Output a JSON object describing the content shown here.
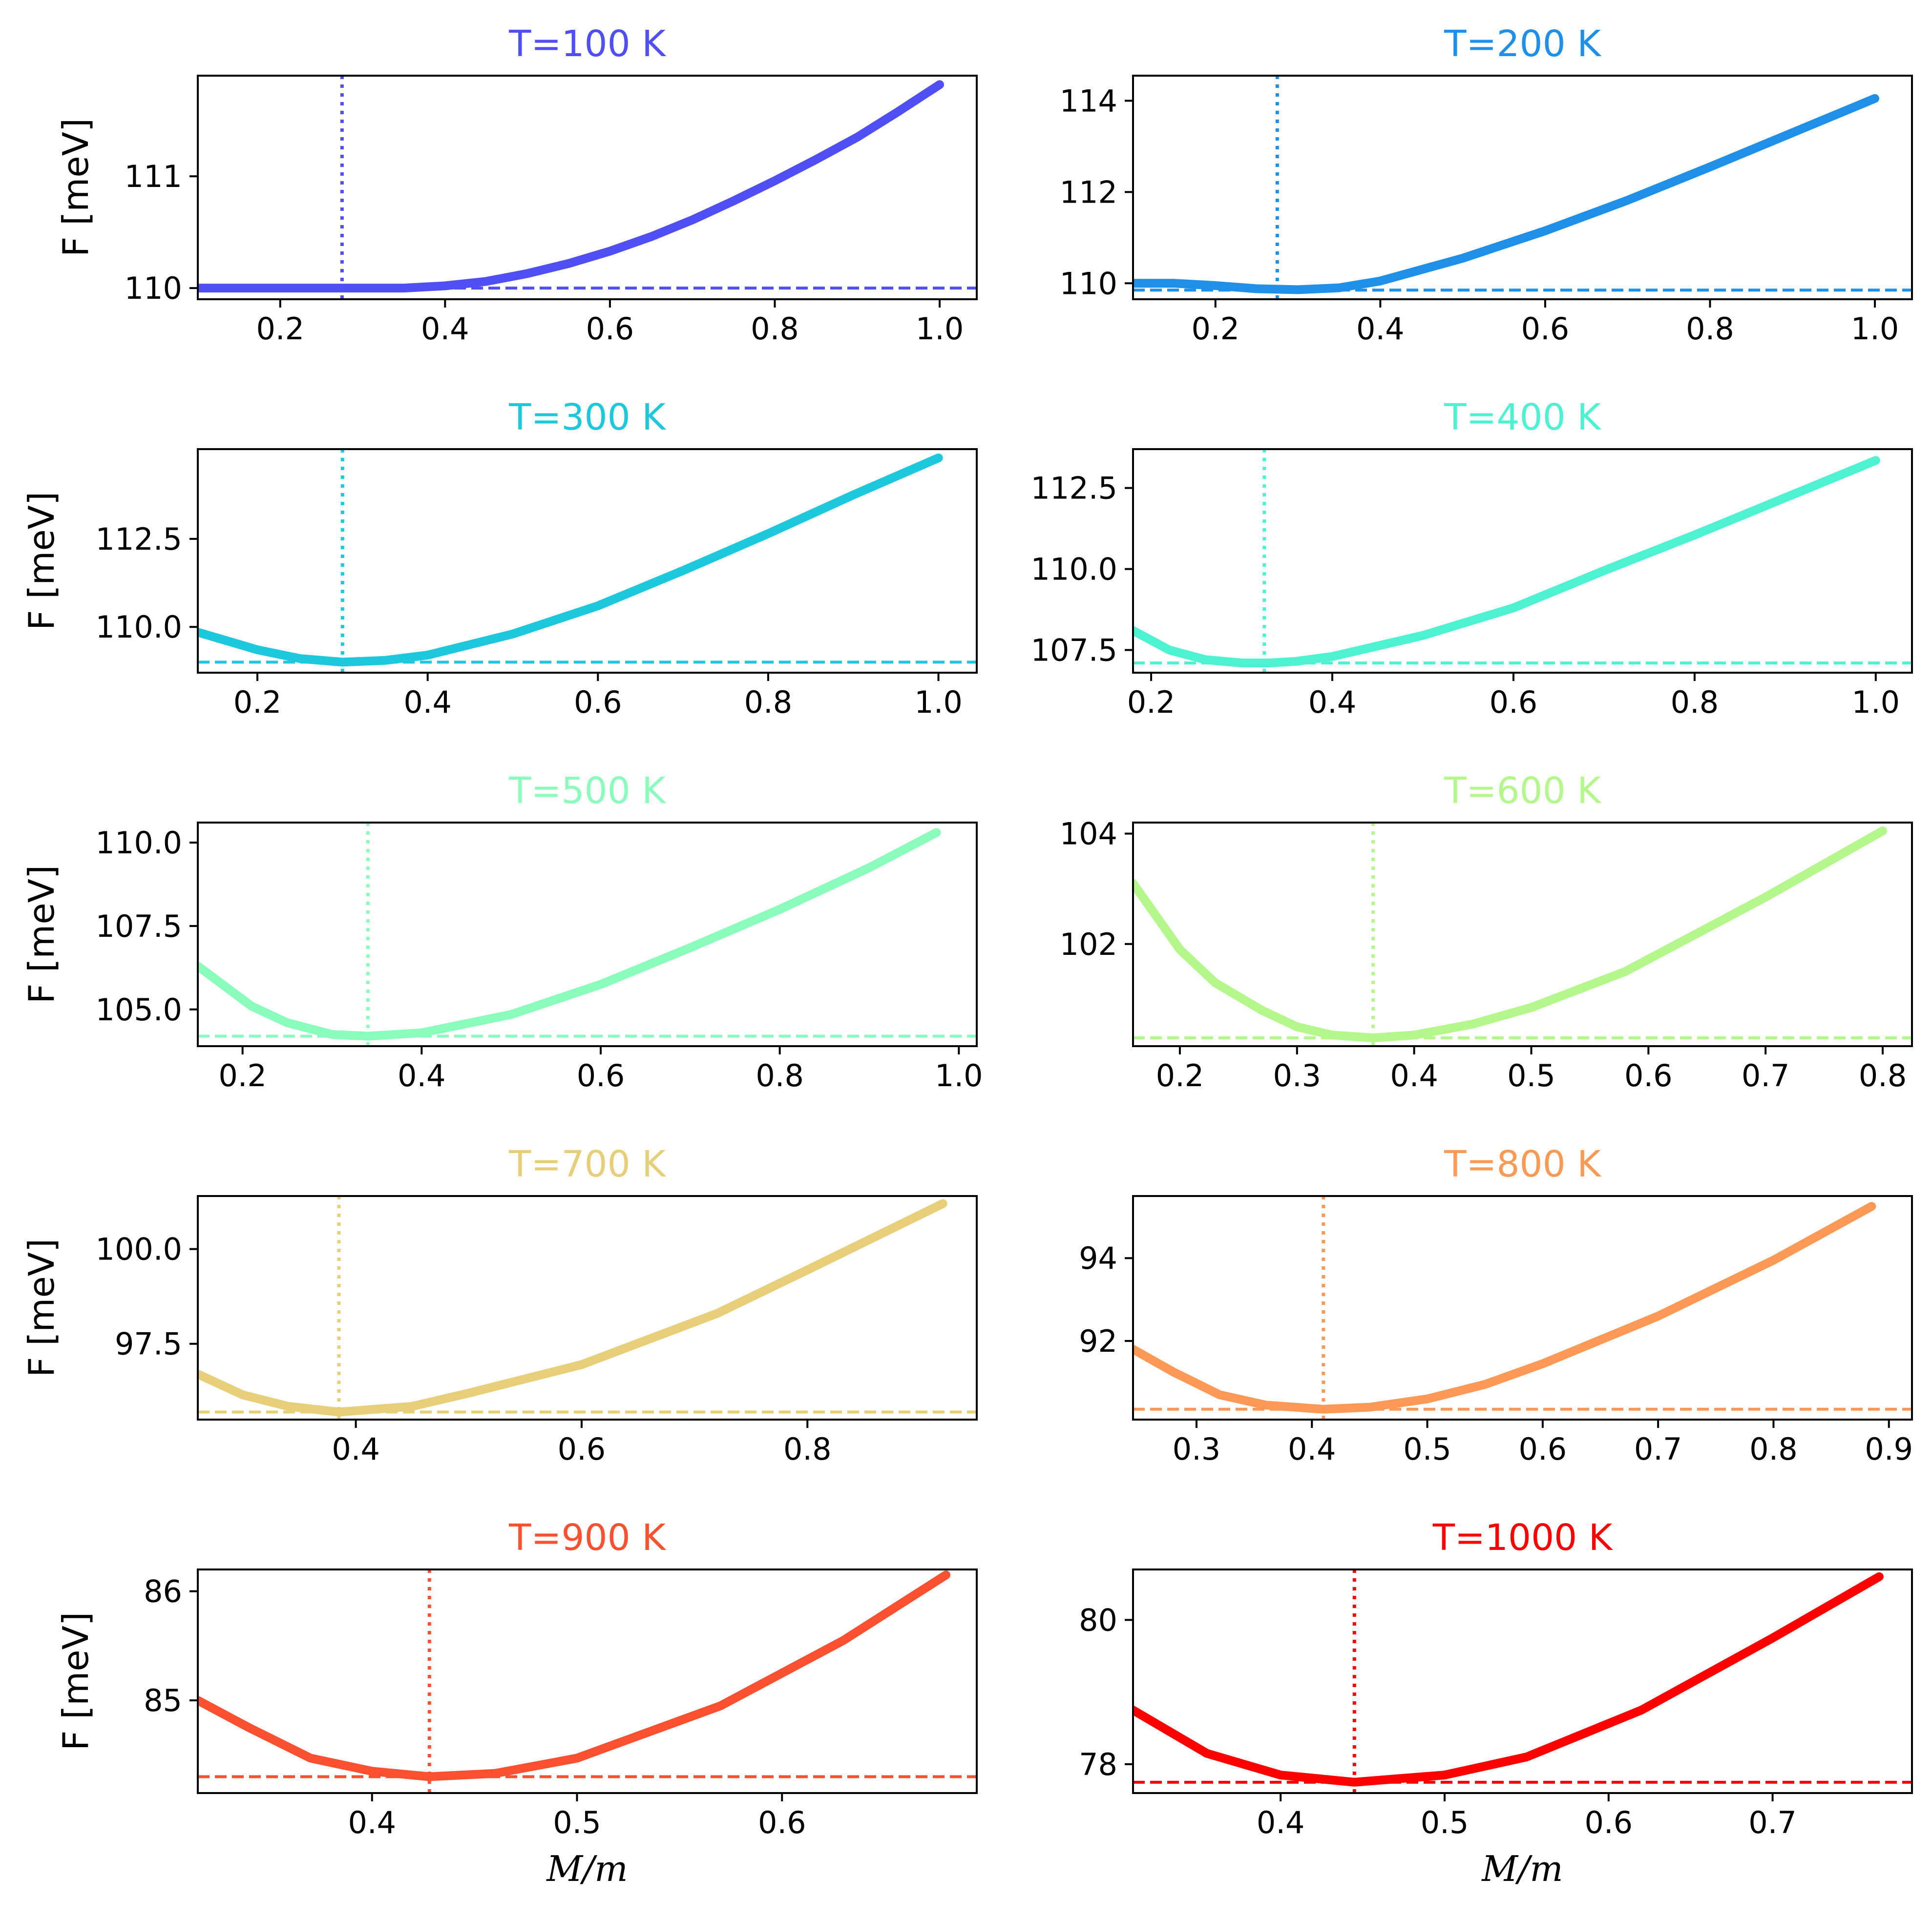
{
  "figure": {
    "ylabel": "F [meV]",
    "xlabel_main": "M",
    "xlabel_rest": "/m"
  },
  "chart_data": [
    {
      "type": "line",
      "title": "T=100 K",
      "color": "#4f4ff5",
      "xlim": [
        0.1,
        1.045
      ],
      "ylim": [
        109.9,
        111.9
      ],
      "xticks": [
        0.2,
        0.4,
        0.6,
        0.8,
        1.0
      ],
      "xtick_labels": [
        "0.2",
        "0.4",
        "0.6",
        "0.8",
        "1.0"
      ],
      "yticks": [
        110,
        111
      ],
      "ytick_labels": [
        "110",
        "111"
      ],
      "ylabel": "F [meV]",
      "xlabel": "",
      "vline_x": 0.275,
      "hline_y": 110.0,
      "x": [
        0.1,
        0.2,
        0.3,
        0.35,
        0.4,
        0.45,
        0.5,
        0.55,
        0.6,
        0.65,
        0.7,
        0.75,
        0.8,
        0.85,
        0.9,
        0.95,
        1.0
      ],
      "y": [
        110.0,
        110.0,
        110.0,
        110.0,
        110.02,
        110.06,
        110.13,
        110.22,
        110.33,
        110.46,
        110.61,
        110.78,
        110.96,
        111.15,
        111.35,
        111.58,
        111.82
      ]
    },
    {
      "type": "line",
      "title": "T=200 K",
      "color": "#1e90ea",
      "xlim": [
        0.1,
        1.045
      ],
      "ylim": [
        109.65,
        114.55
      ],
      "xticks": [
        0.2,
        0.4,
        0.6,
        0.8,
        1.0
      ],
      "xtick_labels": [
        "0.2",
        "0.4",
        "0.6",
        "0.8",
        "1.0"
      ],
      "yticks": [
        110,
        112,
        114
      ],
      "ytick_labels": [
        "110",
        "112",
        "114"
      ],
      "ylabel": "",
      "xlabel": "",
      "vline_x": 0.275,
      "hline_y": 109.85,
      "x": [
        0.1,
        0.15,
        0.2,
        0.25,
        0.3,
        0.35,
        0.4,
        0.5,
        0.6,
        0.7,
        0.8,
        0.9,
        1.0
      ],
      "y": [
        110.0,
        110.0,
        109.95,
        109.88,
        109.86,
        109.9,
        110.05,
        110.55,
        111.15,
        111.82,
        112.55,
        113.3,
        114.05
      ]
    },
    {
      "type": "line",
      "title": "T=300 K",
      "color": "#1ec8dc",
      "xlim": [
        0.13,
        1.045
      ],
      "ylim": [
        108.7,
        115.05
      ],
      "xticks": [
        0.2,
        0.4,
        0.6,
        0.8,
        1.0
      ],
      "xtick_labels": [
        "0.2",
        "0.4",
        "0.6",
        "0.8",
        "1.0"
      ],
      "yticks": [
        110.0,
        112.5
      ],
      "ytick_labels": [
        "110.0",
        "112.5"
      ],
      "ylabel": "F [meV]",
      "xlabel": "",
      "vline_x": 0.3,
      "hline_y": 109.0,
      "x": [
        0.13,
        0.2,
        0.25,
        0.3,
        0.35,
        0.4,
        0.5,
        0.6,
        0.7,
        0.8,
        0.9,
        1.0
      ],
      "y": [
        109.85,
        109.35,
        109.1,
        109.0,
        109.05,
        109.2,
        109.8,
        110.6,
        111.6,
        112.65,
        113.75,
        114.8
      ]
    },
    {
      "type": "line",
      "title": "T=400 K",
      "color": "#4cf2d2",
      "xlim": [
        0.18,
        1.04
      ],
      "ylim": [
        106.8,
        113.7
      ],
      "xticks": [
        0.2,
        0.4,
        0.6,
        0.8,
        1.0
      ],
      "xtick_labels": [
        "0.2",
        "0.4",
        "0.6",
        "0.8",
        "1.0"
      ],
      "yticks": [
        107.5,
        110.0,
        112.5
      ],
      "ytick_labels": [
        "107.5",
        "110.0",
        "112.5"
      ],
      "ylabel": "",
      "xlabel": "",
      "vline_x": 0.325,
      "hline_y": 107.1,
      "x": [
        0.18,
        0.22,
        0.26,
        0.3,
        0.33,
        0.36,
        0.4,
        0.5,
        0.6,
        0.7,
        0.8,
        0.9,
        1.0
      ],
      "y": [
        108.1,
        107.5,
        107.2,
        107.1,
        107.1,
        107.15,
        107.3,
        107.95,
        108.8,
        109.95,
        111.05,
        112.2,
        113.35
      ]
    },
    {
      "type": "line",
      "title": "T=500 K",
      "color": "#8afcbc",
      "xlim": [
        0.15,
        1.02
      ],
      "ylim": [
        103.9,
        110.6
      ],
      "xticks": [
        0.2,
        0.4,
        0.6,
        0.8,
        1.0
      ],
      "xtick_labels": [
        "0.2",
        "0.4",
        "0.6",
        "0.8",
        "1.0"
      ],
      "yticks": [
        105.0,
        107.5,
        110.0
      ],
      "ytick_labels": [
        "105.0",
        "107.5",
        "110.0"
      ],
      "ylabel": "F [meV]",
      "xlabel": "",
      "vline_x": 0.34,
      "hline_y": 104.2,
      "x": [
        0.15,
        0.21,
        0.25,
        0.3,
        0.34,
        0.4,
        0.5,
        0.6,
        0.7,
        0.8,
        0.9,
        0.975
      ],
      "y": [
        106.3,
        105.1,
        104.6,
        104.25,
        104.2,
        104.3,
        104.85,
        105.75,
        106.85,
        108.0,
        109.25,
        110.3
      ]
    },
    {
      "type": "line",
      "title": "T=600 K",
      "color": "#b4f88c",
      "xlim": [
        0.16,
        0.825
      ],
      "ylim": [
        100.15,
        104.2
      ],
      "xticks": [
        0.2,
        0.3,
        0.4,
        0.5,
        0.6,
        0.7,
        0.8
      ],
      "xtick_labels": [
        "0.2",
        "0.3",
        "0.4",
        "0.5",
        "0.6",
        "0.7",
        "0.8"
      ],
      "yticks": [
        102,
        104
      ],
      "ytick_labels": [
        "102",
        "104"
      ],
      "ylabel": "",
      "xlabel": "",
      "vline_x": 0.365,
      "hline_y": 100.3,
      "x": [
        0.16,
        0.18,
        0.2,
        0.23,
        0.27,
        0.3,
        0.33,
        0.365,
        0.4,
        0.45,
        0.5,
        0.58,
        0.7,
        0.8
      ],
      "y": [
        103.1,
        102.5,
        101.9,
        101.3,
        100.8,
        100.5,
        100.35,
        100.3,
        100.35,
        100.55,
        100.85,
        101.5,
        102.85,
        104.05
      ]
    },
    {
      "type": "line",
      "title": "T=700 K",
      "color": "#e6cf78",
      "xlim": [
        0.26,
        0.95
      ],
      "ylim": [
        95.5,
        101.4
      ],
      "xticks": [
        0.4,
        0.6,
        0.8
      ],
      "xtick_labels": [
        "0.4",
        "0.6",
        "0.8"
      ],
      "yticks": [
        97.5,
        100.0
      ],
      "ytick_labels": [
        "97.5",
        "100.0"
      ],
      "ylabel": "F [meV]",
      "xlabel": "",
      "vline_x": 0.385,
      "hline_y": 95.7,
      "x": [
        0.26,
        0.3,
        0.34,
        0.385,
        0.45,
        0.5,
        0.6,
        0.72,
        0.8,
        0.92
      ],
      "y": [
        96.7,
        96.15,
        95.85,
        95.7,
        95.85,
        96.2,
        96.95,
        98.3,
        99.45,
        101.2
      ]
    },
    {
      "type": "line",
      "title": "T=800 K",
      "color": "#fb9955",
      "xlim": [
        0.245,
        0.92
      ],
      "ylim": [
        90.1,
        95.5
      ],
      "xticks": [
        0.3,
        0.4,
        0.5,
        0.6,
        0.7,
        0.8,
        0.9
      ],
      "xtick_labels": [
        "0.3",
        "0.4",
        "0.5",
        "0.6",
        "0.7",
        "0.8",
        "0.9"
      ],
      "yticks": [
        92,
        94
      ],
      "ytick_labels": [
        "92",
        "94"
      ],
      "ylabel": "",
      "xlabel": "",
      "vline_x": 0.41,
      "hline_y": 90.35,
      "x": [
        0.245,
        0.28,
        0.32,
        0.36,
        0.41,
        0.45,
        0.5,
        0.55,
        0.6,
        0.7,
        0.8,
        0.885
      ],
      "y": [
        91.8,
        91.25,
        90.7,
        90.45,
        90.35,
        90.4,
        90.6,
        90.95,
        91.45,
        92.6,
        93.95,
        95.25
      ]
    },
    {
      "type": "line",
      "title": "T=900 K",
      "color": "#fb5131",
      "xlim": [
        0.315,
        0.695
      ],
      "ylim": [
        84.15,
        86.2
      ],
      "xticks": [
        0.4,
        0.5,
        0.6
      ],
      "xtick_labels": [
        "0.4",
        "0.5",
        "0.6"
      ],
      "yticks": [
        85,
        86
      ],
      "ytick_labels": [
        "85",
        "86"
      ],
      "ylabel": "F [meV]",
      "xlabel": "M/m",
      "vline_x": 0.428,
      "hline_y": 84.3,
      "x": [
        0.315,
        0.34,
        0.37,
        0.4,
        0.428,
        0.46,
        0.5,
        0.57,
        0.63,
        0.68
      ],
      "y": [
        85.0,
        84.75,
        84.47,
        84.35,
        84.3,
        84.33,
        84.47,
        84.95,
        85.55,
        86.15
      ]
    },
    {
      "type": "line",
      "title": "T=1000 K",
      "color": "#ff0000",
      "xlim": [
        0.31,
        0.785
      ],
      "ylim": [
        77.6,
        80.7
      ],
      "xticks": [
        0.4,
        0.5,
        0.6,
        0.7
      ],
      "xtick_labels": [
        "0.4",
        "0.5",
        "0.6",
        "0.7"
      ],
      "yticks": [
        78,
        80
      ],
      "ytick_labels": [
        "78",
        "80"
      ],
      "ylabel": "",
      "xlabel": "M/m",
      "vline_x": 0.445,
      "hline_y": 77.75,
      "x": [
        0.31,
        0.355,
        0.4,
        0.445,
        0.5,
        0.55,
        0.62,
        0.7,
        0.765
      ],
      "y": [
        78.75,
        78.15,
        77.85,
        77.75,
        77.85,
        78.1,
        78.75,
        79.75,
        80.6
      ]
    }
  ]
}
